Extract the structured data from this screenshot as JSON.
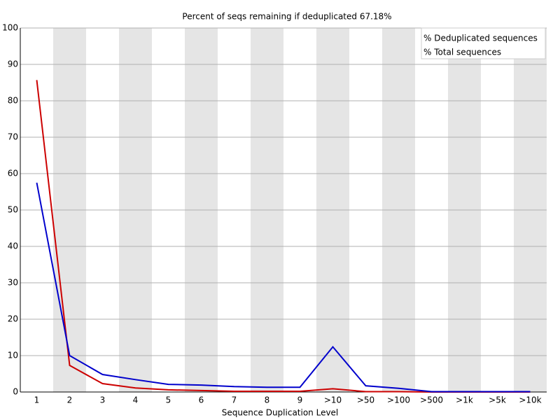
{
  "chart_data": {
    "type": "line",
    "title": "Percent of seqs remaining if deduplicated 67.18%",
    "x_label": "Sequence Duplication Level",
    "categories": [
      "1",
      "2",
      "3",
      "4",
      "5",
      "6",
      "7",
      "8",
      "9",
      ">10",
      ">50",
      ">100",
      ">500",
      ">1k",
      ">5k",
      ">10k"
    ],
    "series": [
      {
        "name": "% Deduplicated sequences",
        "color": "#cc0000",
        "values": [
          85.7,
          7.3,
          2.3,
          1.1,
          0.6,
          0.4,
          0.2,
          0.2,
          0.2,
          0.9,
          0.1,
          0.1,
          0,
          0,
          0,
          0
        ]
      },
      {
        "name": "% Total sequences",
        "color": "#0000cc",
        "values": [
          57.5,
          10.0,
          4.8,
          3.4,
          2.1,
          1.9,
          1.5,
          1.3,
          1.3,
          12.4,
          1.7,
          1.0,
          0.1,
          0.1,
          0.1,
          0.1
        ]
      }
    ],
    "ylim": [
      0,
      100
    ],
    "yticks": [
      0,
      10,
      20,
      30,
      40,
      50,
      60,
      70,
      80,
      90,
      100
    ],
    "grid": true,
    "legend": "top-right"
  }
}
